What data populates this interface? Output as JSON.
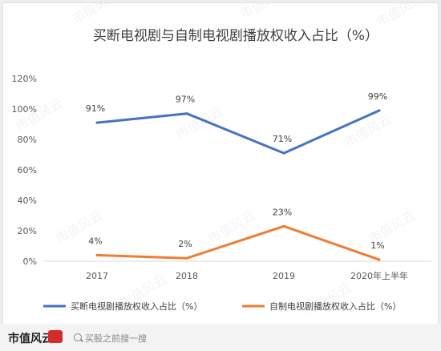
{
  "chart_data": {
    "type": "line",
    "title": "买断电视剧与自制电视剧播放权收入占比（%）",
    "categories": [
      "2017",
      "2018",
      "2019",
      "2020年上半年"
    ],
    "y_ticks": [
      "0%",
      "20%",
      "40%",
      "60%",
      "80%",
      "100%",
      "120%"
    ],
    "ylim": [
      0,
      120
    ],
    "series": [
      {
        "name": "买断电视剧播放权收入占比（%）",
        "values": [
          91,
          97,
          71,
          99
        ],
        "labels": [
          "91%",
          "97%",
          "71%",
          "99%"
        ],
        "color": "#4472c4"
      },
      {
        "name": "自制电视剧播放权收入占比（%）",
        "values": [
          4,
          2,
          23,
          1
        ],
        "labels": [
          "4%",
          "2%",
          "23%",
          "1%"
        ],
        "color": "#ed7d31"
      }
    ],
    "legend_position": "bottom",
    "grid": false
  },
  "watermark": "市值风云",
  "footer": {
    "brand": "市值风云",
    "search_hint": "买股之前搜一搜"
  }
}
